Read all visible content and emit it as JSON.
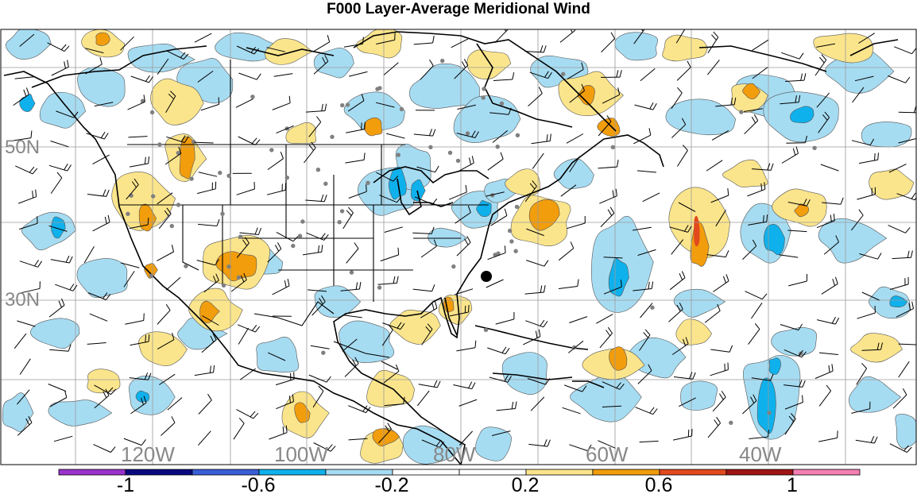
{
  "title": "F000 Layer-Average Meridional Wind",
  "map": {
    "lat_labels": [
      "50N",
      "30N"
    ],
    "lon_labels": [
      "120W",
      "100W",
      "80W",
      "60W",
      "40W"
    ]
  },
  "colorbar": {
    "colors": [
      "#9933cc",
      "#0a0a80",
      "#3a5ed8",
      "#0fb1ec",
      "#a6dcf2",
      "#ffffff",
      "#ffffff",
      "#fbe58c",
      "#f29d0c",
      "#e2491d",
      "#a01414",
      "#f57fb4"
    ],
    "labels": [
      "-1",
      "-0.6",
      "-0.2",
      "0.2",
      "0.6",
      "1"
    ]
  },
  "marker": {
    "color": "#000000"
  }
}
